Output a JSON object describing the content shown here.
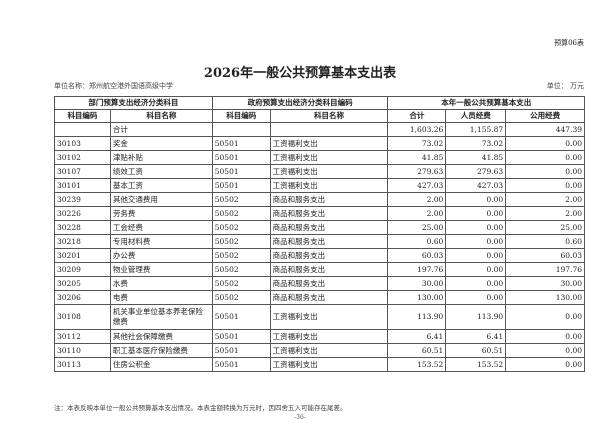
{
  "form_no": "预算06表",
  "title": "2026年一般公共预算基本支出表",
  "unit_name": "单位名称：郑州航空港外国语高级中学",
  "unit": "单位：  万元",
  "header_groups": [
    "部门预算支出经济分类科目",
    "政府预算支出经济分类科目编码",
    "本年一般公共预算基本支出"
  ],
  "columns": [
    "科目编码",
    "科目名称",
    "科目编码",
    "科目名称",
    "合计",
    "人员经费",
    "公用经费"
  ],
  "rows": [
    [
      "",
      "合计",
      "",
      "",
      "1,603.26",
      "1,155.87",
      "447.39"
    ],
    [
      "30103",
      "奖金",
      "50501",
      "工资福利支出",
      "73.02",
      "73.02",
      "0.00"
    ],
    [
      "30102",
      "津贴补贴",
      "50501",
      "工资福利支出",
      "41.85",
      "41.85",
      "0.00"
    ],
    [
      "30107",
      "绩效工资",
      "50501",
      "工资福利支出",
      "279.63",
      "279.63",
      "0.00"
    ],
    [
      "30101",
      "基本工资",
      "50501",
      "工资福利支出",
      "427.03",
      "427.03",
      "0.00"
    ],
    [
      "30239",
      "其他交通费用",
      "50502",
      "商品和服务支出",
      "2.00",
      "0.00",
      "2.00"
    ],
    [
      "30226",
      "劳务费",
      "50502",
      "商品和服务支出",
      "2.00",
      "0.00",
      "2.00"
    ],
    [
      "30228",
      "工会经费",
      "50502",
      "商品和服务支出",
      "25.00",
      "0.00",
      "25.00"
    ],
    [
      "30218",
      "专用材料费",
      "50502",
      "商品和服务支出",
      "0.60",
      "0.00",
      "0.60"
    ],
    [
      "30201",
      "办公费",
      "50502",
      "商品和服务支出",
      "60.03",
      "0.00",
      "60.03"
    ],
    [
      "30209",
      "物业管理费",
      "50502",
      "商品和服务支出",
      "197.76",
      "0.00",
      "197.76"
    ],
    [
      "30205",
      "水费",
      "50502",
      "商品和服务支出",
      "30.00",
      "0.00",
      "30.00"
    ],
    [
      "30206",
      "电费",
      "50502",
      "商品和服务支出",
      "130.00",
      "0.00",
      "130.00"
    ],
    [
      "30108",
      "机关事业单位基本养老保险缴费",
      "50501",
      "工资福利支出",
      "113.90",
      "113.90",
      "0.00"
    ],
    [
      "30112",
      "其他社会保障缴费",
      "50501",
      "工资福利支出",
      "6.41",
      "6.41",
      "0.00"
    ],
    [
      "30110",
      "职工基本医疗保险缴费",
      "50501",
      "工资福利支出",
      "60.51",
      "60.51",
      "0.00"
    ],
    [
      "30113",
      "住房公积金",
      "50501",
      "工资福利支出",
      "153.52",
      "153.52",
      "0.00"
    ]
  ],
  "note": "注：本表反映本单位一般公共预算基本支出情况。本表金额转换为万元时，因四舍五入可能存在尾差。",
  "page_number": "-36-"
}
